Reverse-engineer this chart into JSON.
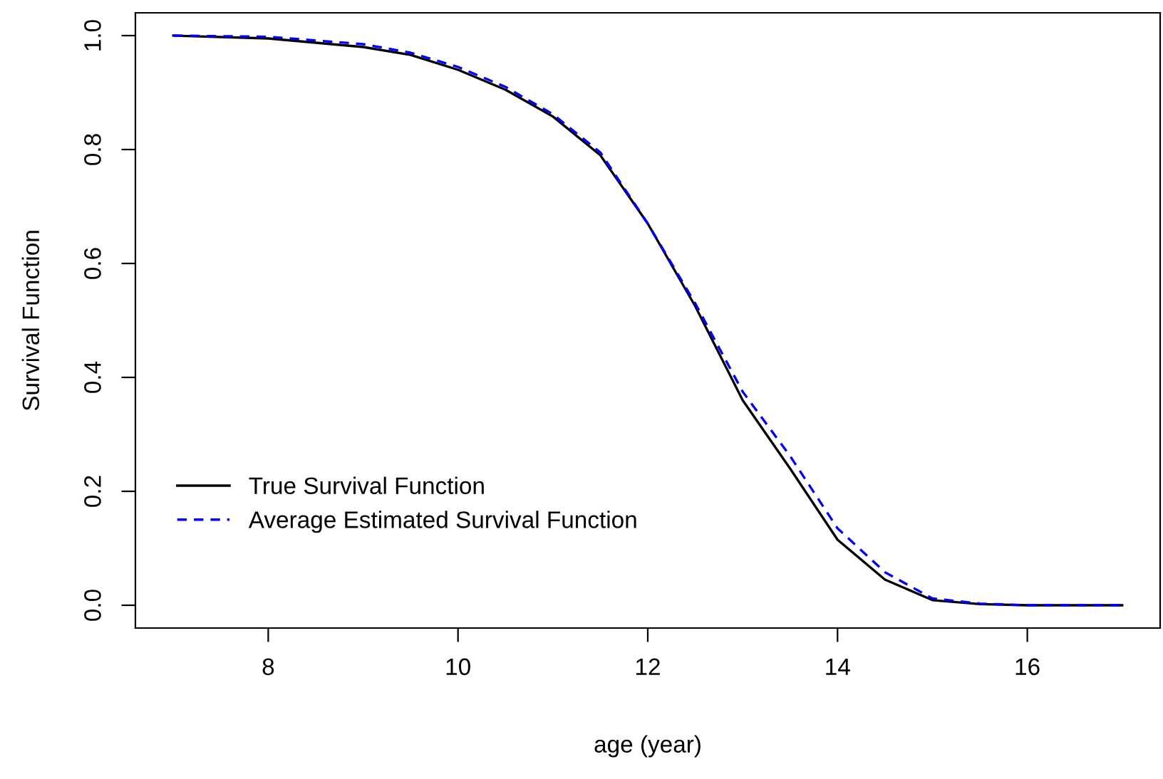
{
  "chart_data": {
    "type": "line",
    "xlabel": "age (year)",
    "ylabel": "Survival Function",
    "x": [
      7,
      8,
      9,
      9.5,
      10,
      10.5,
      11,
      11.5,
      12,
      12.5,
      13,
      13.5,
      14,
      14.5,
      15,
      15.5,
      16,
      17
    ],
    "series": [
      {
        "name": "True Survival Function",
        "color": "#000000",
        "line_style": "solid",
        "values": [
          1.0,
          0.995,
          0.98,
          0.966,
          0.94,
          0.905,
          0.858,
          0.79,
          0.67,
          0.525,
          0.36,
          0.24,
          0.115,
          0.045,
          0.009,
          0.002,
          0,
          0
        ]
      },
      {
        "name": "Average Estimated Survival Function",
        "color": "#0000ff",
        "line_style": "dashed",
        "values": [
          1.0,
          0.998,
          0.985,
          0.97,
          0.945,
          0.91,
          0.862,
          0.795,
          0.67,
          0.53,
          0.375,
          0.262,
          0.135,
          0.058,
          0.012,
          0.003,
          0,
          0
        ]
      }
    ],
    "xlim": [
      6.6,
      17.4
    ],
    "ylim": [
      -0.04,
      1.04
    ],
    "xticks": [
      8,
      10,
      12,
      14,
      16
    ],
    "yticks": [
      {
        "value": 0,
        "label": "0.0"
      },
      {
        "value": 0.2,
        "label": "0.2"
      },
      {
        "value": 0.4,
        "label": "0.4"
      },
      {
        "value": 0.6,
        "label": "0.6"
      },
      {
        "value": 0.8,
        "label": "0.8"
      },
      {
        "value": 1,
        "label": "1.0"
      }
    ],
    "grid": false,
    "legend": "bottom left"
  }
}
